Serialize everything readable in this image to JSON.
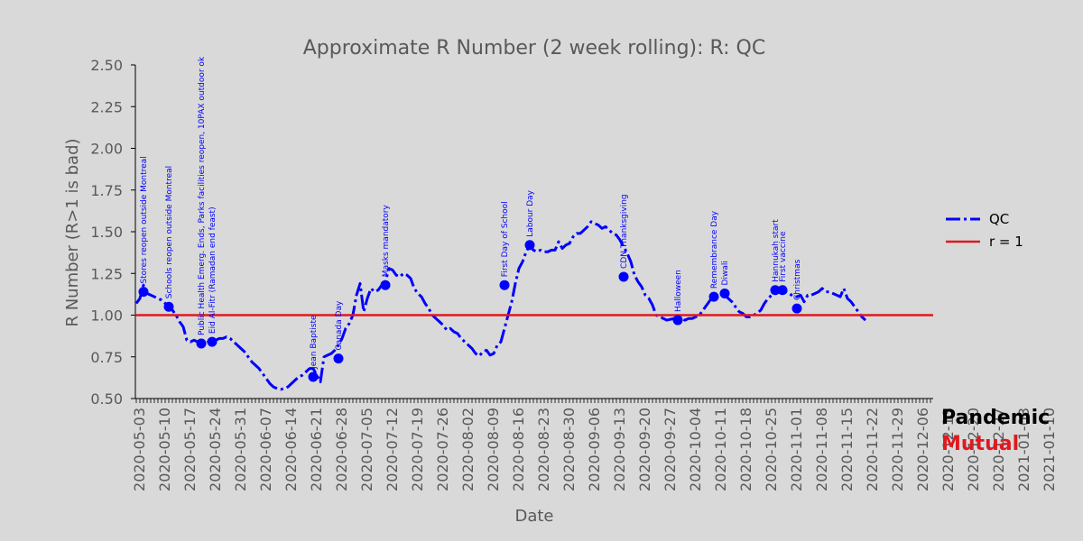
{
  "chart_data": {
    "type": "line",
    "title": "Approximate R Number (2 week rolling): R: QC",
    "xlabel": "Date",
    "ylabel": "R Number (R>1 is bad)",
    "ylim": [
      0.5,
      2.5
    ],
    "yticks": [
      "0.50",
      "0.75",
      "1.00",
      "1.25",
      "1.50",
      "1.75",
      "2.00",
      "2.25",
      "2.50"
    ],
    "xticks": [
      "2020-05-03",
      "2020-05-10",
      "2020-05-17",
      "2020-05-24",
      "2020-05-31",
      "2020-06-07",
      "2020-06-14",
      "2020-06-21",
      "2020-06-28",
      "2020-07-05",
      "2020-07-12",
      "2020-07-19",
      "2020-07-26",
      "2020-08-02",
      "2020-08-09",
      "2020-08-16",
      "2020-08-23",
      "2020-08-30",
      "2020-09-06",
      "2020-09-13",
      "2020-09-20",
      "2020-09-27",
      "2020-10-04",
      "2020-10-11",
      "2020-10-18",
      "2020-10-25",
      "2020-11-01",
      "2020-11-08",
      "2020-11-15",
      "2020-11-22",
      "2020-11-29",
      "2020-12-06",
      "2020-12-13",
      "2020-12-20",
      "2020-12-27",
      "2021-01-03",
      "2021-01-10"
    ],
    "xstart": "2020-05-03",
    "grid": false,
    "legend_position": "right",
    "series": [
      {
        "name": "QC",
        "color": "#0000ff",
        "style": "dash-dot",
        "points": [
          [
            "2020-05-02",
            1.07
          ],
          [
            "2020-05-03",
            1.1
          ],
          [
            "2020-05-04",
            1.18
          ],
          [
            "2020-05-05",
            1.13
          ],
          [
            "2020-05-06",
            1.12
          ],
          [
            "2020-05-07",
            1.11
          ],
          [
            "2020-05-08",
            1.1
          ],
          [
            "2020-05-09",
            1.09
          ],
          [
            "2020-05-10",
            1.07
          ],
          [
            "2020-05-11",
            1.05
          ],
          [
            "2020-05-12",
            1.03
          ],
          [
            "2020-05-13",
            1.0
          ],
          [
            "2020-05-14",
            0.96
          ],
          [
            "2020-05-15",
            0.93
          ],
          [
            "2020-05-16",
            0.85
          ],
          [
            "2020-05-17",
            0.84
          ],
          [
            "2020-05-18",
            0.85
          ],
          [
            "2020-05-19",
            0.84
          ],
          [
            "2020-05-20",
            0.83
          ],
          [
            "2020-05-21",
            0.83
          ],
          [
            "2020-05-22",
            0.84
          ],
          [
            "2020-05-23",
            0.84
          ],
          [
            "2020-05-24",
            0.85
          ],
          [
            "2020-05-25",
            0.86
          ],
          [
            "2020-05-26",
            0.86
          ],
          [
            "2020-05-27",
            0.87
          ],
          [
            "2020-05-28",
            0.86
          ],
          [
            "2020-05-29",
            0.84
          ],
          [
            "2020-05-30",
            0.82
          ],
          [
            "2020-05-31",
            0.8
          ],
          [
            "2020-06-01",
            0.78
          ],
          [
            "2020-06-02",
            0.75
          ],
          [
            "2020-06-03",
            0.72
          ],
          [
            "2020-06-04",
            0.7
          ],
          [
            "2020-06-05",
            0.68
          ],
          [
            "2020-06-06",
            0.65
          ],
          [
            "2020-06-07",
            0.62
          ],
          [
            "2020-06-08",
            0.59
          ],
          [
            "2020-06-09",
            0.57
          ],
          [
            "2020-06-10",
            0.56
          ],
          [
            "2020-06-11",
            0.555
          ],
          [
            "2020-06-12",
            0.56
          ],
          [
            "2020-06-13",
            0.57
          ],
          [
            "2020-06-14",
            0.59
          ],
          [
            "2020-06-15",
            0.61
          ],
          [
            "2020-06-16",
            0.63
          ],
          [
            "2020-06-17",
            0.64
          ],
          [
            "2020-06-18",
            0.66
          ],
          [
            "2020-06-19",
            0.68
          ],
          [
            "2020-06-20",
            0.68
          ],
          [
            "2020-06-21",
            0.64
          ],
          [
            "2020-06-22",
            0.6
          ],
          [
            "2020-06-23",
            0.75
          ],
          [
            "2020-06-24",
            0.76
          ],
          [
            "2020-06-25",
            0.77
          ],
          [
            "2020-06-26",
            0.79
          ],
          [
            "2020-06-27",
            0.82
          ],
          [
            "2020-06-28",
            0.86
          ],
          [
            "2020-06-29",
            0.92
          ],
          [
            "2020-06-30",
            0.95
          ],
          [
            "2020-07-01",
            1.0
          ],
          [
            "2020-07-02",
            1.12
          ],
          [
            "2020-07-03",
            1.19
          ],
          [
            "2020-07-04",
            1.02
          ],
          [
            "2020-07-05",
            1.1
          ],
          [
            "2020-07-06",
            1.16
          ],
          [
            "2020-07-07",
            1.14
          ],
          [
            "2020-07-08",
            1.15
          ],
          [
            "2020-07-09",
            1.18
          ],
          [
            "2020-07-10",
            1.2
          ],
          [
            "2020-07-11",
            1.28
          ],
          [
            "2020-07-12",
            1.27
          ],
          [
            "2020-07-13",
            1.24
          ],
          [
            "2020-07-14",
            1.23
          ],
          [
            "2020-07-15",
            1.25
          ],
          [
            "2020-07-16",
            1.24
          ],
          [
            "2020-07-17",
            1.22
          ],
          [
            "2020-07-18",
            1.16
          ],
          [
            "2020-07-19",
            1.13
          ],
          [
            "2020-07-20",
            1.11
          ],
          [
            "2020-07-21",
            1.07
          ],
          [
            "2020-07-22",
            1.04
          ],
          [
            "2020-07-23",
            1.0
          ],
          [
            "2020-07-24",
            0.98
          ],
          [
            "2020-07-25",
            0.96
          ],
          [
            "2020-07-26",
            0.94
          ],
          [
            "2020-07-27",
            0.91
          ],
          [
            "2020-07-28",
            0.92
          ],
          [
            "2020-07-29",
            0.9
          ],
          [
            "2020-07-30",
            0.89
          ],
          [
            "2020-07-31",
            0.86
          ],
          [
            "2020-08-01",
            0.84
          ],
          [
            "2020-08-02",
            0.82
          ],
          [
            "2020-08-03",
            0.8
          ],
          [
            "2020-08-04",
            0.77
          ],
          [
            "2020-08-05",
            0.755
          ],
          [
            "2020-08-06",
            0.78
          ],
          [
            "2020-08-07",
            0.79
          ],
          [
            "2020-08-08",
            0.76
          ],
          [
            "2020-08-09",
            0.77
          ],
          [
            "2020-08-10",
            0.82
          ],
          [
            "2020-08-11",
            0.84
          ],
          [
            "2020-08-12",
            0.92
          ],
          [
            "2020-08-13",
            1.0
          ],
          [
            "2020-08-14",
            1.08
          ],
          [
            "2020-08-15",
            1.19
          ],
          [
            "2020-08-16",
            1.28
          ],
          [
            "2020-08-17",
            1.32
          ],
          [
            "2020-08-18",
            1.38
          ],
          [
            "2020-08-19",
            1.42
          ],
          [
            "2020-08-20",
            1.39
          ],
          [
            "2020-08-21",
            1.38
          ],
          [
            "2020-08-22",
            1.39
          ],
          [
            "2020-08-23",
            1.38
          ],
          [
            "2020-08-24",
            1.38
          ],
          [
            "2020-08-25",
            1.39
          ],
          [
            "2020-08-26",
            1.39
          ],
          [
            "2020-08-27",
            1.44
          ],
          [
            "2020-08-28",
            1.4
          ],
          [
            "2020-08-29",
            1.42
          ],
          [
            "2020-08-30",
            1.43
          ],
          [
            "2020-08-31",
            1.47
          ],
          [
            "2020-09-01",
            1.49
          ],
          [
            "2020-09-02",
            1.49
          ],
          [
            "2020-09-03",
            1.51
          ],
          [
            "2020-09-04",
            1.53
          ],
          [
            "2020-09-05",
            1.56
          ],
          [
            "2020-09-06",
            1.55
          ],
          [
            "2020-09-07",
            1.54
          ],
          [
            "2020-09-08",
            1.52
          ],
          [
            "2020-09-09",
            1.53
          ],
          [
            "2020-09-10",
            1.51
          ],
          [
            "2020-09-11",
            1.49
          ],
          [
            "2020-09-12",
            1.48
          ],
          [
            "2020-09-13",
            1.45
          ],
          [
            "2020-09-14",
            1.41
          ],
          [
            "2020-09-15",
            1.37
          ],
          [
            "2020-09-16",
            1.32
          ],
          [
            "2020-09-17",
            1.24
          ],
          [
            "2020-09-18",
            1.2
          ],
          [
            "2020-09-19",
            1.17
          ],
          [
            "2020-09-20",
            1.12
          ],
          [
            "2020-09-21",
            1.1
          ],
          [
            "2020-09-22",
            1.06
          ],
          [
            "2020-09-23",
            1.0
          ],
          [
            "2020-09-24",
            0.99
          ],
          [
            "2020-09-25",
            0.98
          ],
          [
            "2020-09-26",
            0.97
          ],
          [
            "2020-09-27",
            0.975
          ],
          [
            "2020-09-28",
            0.98
          ],
          [
            "2020-09-29",
            0.97
          ],
          [
            "2020-09-30",
            0.98
          ],
          [
            "2020-10-01",
            0.97
          ],
          [
            "2020-10-02",
            0.98
          ],
          [
            "2020-10-03",
            0.98
          ],
          [
            "2020-10-04",
            0.99
          ],
          [
            "2020-10-05",
            1.0
          ],
          [
            "2020-10-06",
            1.03
          ],
          [
            "2020-10-07",
            1.06
          ],
          [
            "2020-10-08",
            1.09
          ],
          [
            "2020-10-09",
            1.11
          ],
          [
            "2020-10-10",
            1.12
          ],
          [
            "2020-10-11",
            1.13
          ],
          [
            "2020-10-12",
            1.12
          ],
          [
            "2020-10-13",
            1.1
          ],
          [
            "2020-10-14",
            1.08
          ],
          [
            "2020-10-15",
            1.05
          ],
          [
            "2020-10-16",
            1.02
          ],
          [
            "2020-10-17",
            1.01
          ],
          [
            "2020-10-18",
            0.99
          ],
          [
            "2020-10-19",
            0.99
          ],
          [
            "2020-10-20",
            1.0
          ],
          [
            "2020-10-21",
            1.01
          ],
          [
            "2020-10-22",
            1.03
          ],
          [
            "2020-10-23",
            1.07
          ],
          [
            "2020-10-24",
            1.1
          ],
          [
            "2020-10-25",
            1.12
          ],
          [
            "2020-10-26",
            1.14
          ],
          [
            "2020-10-27",
            1.15
          ],
          [
            "2020-10-28",
            1.15
          ],
          [
            "2020-10-29",
            1.14
          ],
          [
            "2020-10-30",
            1.13
          ],
          [
            "2020-10-31",
            1.11
          ],
          [
            "2020-11-01",
            1.11
          ],
          [
            "2020-11-02",
            1.12
          ],
          [
            "2020-11-03",
            1.08
          ],
          [
            "2020-11-04",
            1.12
          ],
          [
            "2020-11-05",
            1.12
          ],
          [
            "2020-11-06",
            1.13
          ],
          [
            "2020-11-07",
            1.14
          ],
          [
            "2020-11-08",
            1.16
          ],
          [
            "2020-11-09",
            1.14
          ],
          [
            "2020-11-10",
            1.14
          ],
          [
            "2020-11-11",
            1.13
          ],
          [
            "2020-11-12",
            1.12
          ],
          [
            "2020-11-13",
            1.11
          ],
          [
            "2020-11-14",
            1.16
          ],
          [
            "2020-11-15",
            1.1
          ],
          [
            "2020-11-16",
            1.08
          ],
          [
            "2020-11-17",
            1.05
          ],
          [
            "2020-11-18",
            1.02
          ],
          [
            "2020-11-19",
            0.99
          ],
          [
            "2020-11-20",
            0.97
          ]
        ]
      },
      {
        "name": "r = 1",
        "color": "#e0191f",
        "style": "solid",
        "points": [
          [
            "2020-05-02",
            1.0
          ],
          [
            "2020-11-20",
            1.0
          ]
        ]
      }
    ],
    "markers": [
      {
        "date": "2020-05-04",
        "value": 1.14,
        "label": "Stores reopen outside Montreal"
      },
      {
        "date": "2020-05-11",
        "value": 1.05,
        "label": "Schools reopen outside Montreal"
      },
      {
        "date": "2020-05-20",
        "value": 0.83,
        "label": "Public Health Emerg. Ends, Parks facilities reopen, 10PAX outdoor ok"
      },
      {
        "date": "2020-05-23",
        "value": 0.84,
        "label": "Eid Al-Fitr (Ramadan end feast)"
      },
      {
        "date": "2020-06-20",
        "value": 0.63,
        "label": "Jean Baptiste"
      },
      {
        "date": "2020-06-27",
        "value": 0.74,
        "label": "Canada Day"
      },
      {
        "date": "2020-07-10",
        "value": 1.18,
        "label": "Masks mandatory"
      },
      {
        "date": "2020-08-12",
        "value": 1.18,
        "label": "First Day of School"
      },
      {
        "date": "2020-08-19",
        "value": 1.42,
        "label": "Labour Day"
      },
      {
        "date": "2020-09-14",
        "value": 1.23,
        "label": "CDN Thanksgiving"
      },
      {
        "date": "2020-09-29",
        "value": 0.97,
        "label": "Halloween"
      },
      {
        "date": "2020-10-09",
        "value": 1.11,
        "label": "Remembrance Day"
      },
      {
        "date": "2020-10-12",
        "value": 1.13,
        "label": "Diwali"
      },
      {
        "date": "2020-10-26",
        "value": 1.15,
        "label": "Hannukah start"
      },
      {
        "date": "2020-10-28",
        "value": 1.15,
        "label": "First vaccine"
      },
      {
        "date": "2020-11-01",
        "value": 1.04,
        "label": "Christmas"
      }
    ]
  },
  "brand": {
    "line1": "Pandemic",
    "line2": "Mutual"
  }
}
